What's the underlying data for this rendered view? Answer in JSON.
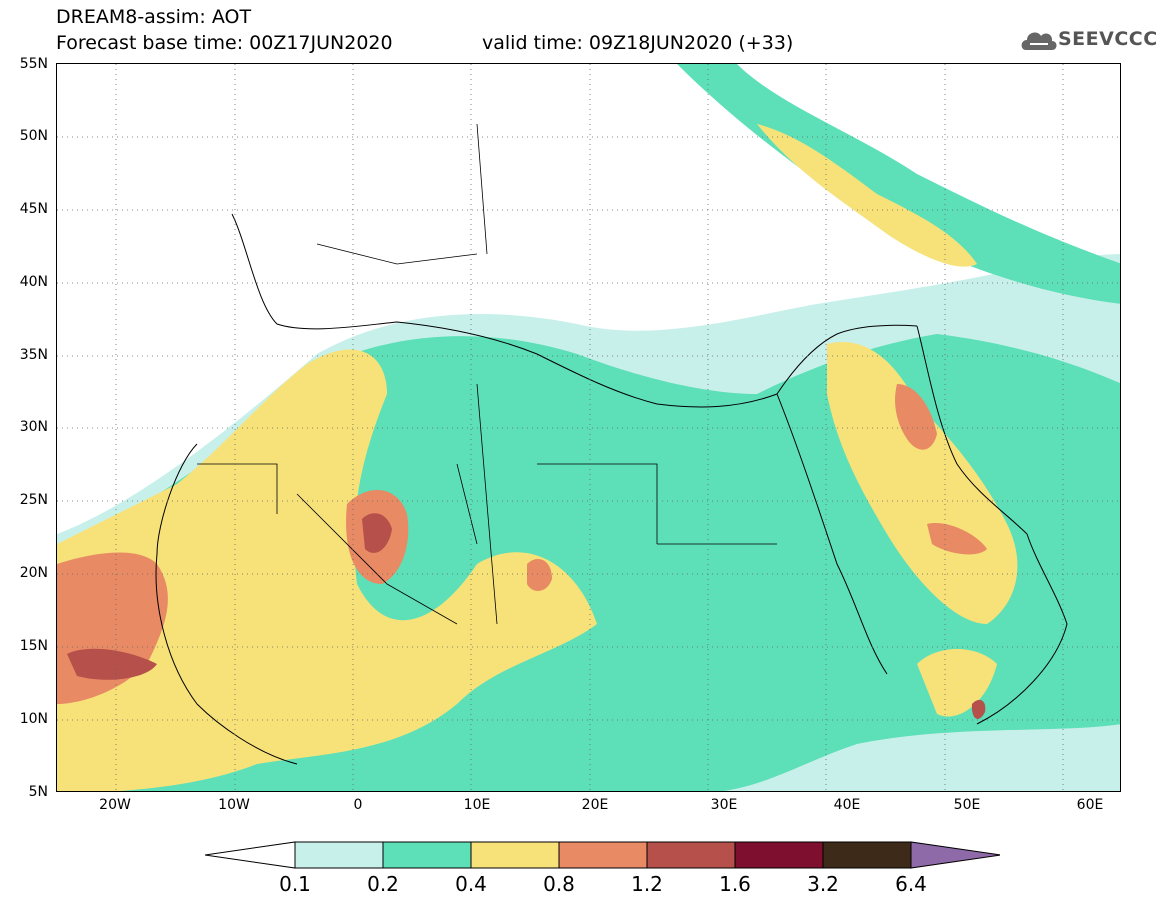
{
  "header": {
    "title_line1": "DREAM8-assim: AOT",
    "title_line2": "Forecast base time: 00Z17JUN2020",
    "valid_time": "valid time: 09Z18JUN2020 (+33)",
    "logo_text": "SEEVCCC"
  },
  "axes": {
    "lat_labels": [
      "55N",
      "50N",
      "45N",
      "40N",
      "35N",
      "30N",
      "25N",
      "20N",
      "15N",
      "10N",
      "5N"
    ],
    "lon_labels": [
      "20W",
      "10W",
      "0",
      "10E",
      "20E",
      "30E",
      "40E",
      "50E",
      "60E"
    ],
    "lat_range": [
      5,
      55
    ],
    "lon_range": [
      -25,
      65
    ],
    "grid": "dotted"
  },
  "colorbar": {
    "labels": [
      "0.1",
      "0.2",
      "0.4",
      "0.8",
      "1.2",
      "1.6",
      "3.2",
      "6.4"
    ],
    "colors": [
      "#ffffff",
      "#c8f0ea",
      "#5ddfb8",
      "#f7e27a",
      "#e88a64",
      "#b5504a",
      "#7e0f2e",
      "#3e2a18",
      "#8f6aa8"
    ]
  },
  "fields": {
    "lowest_color": "#c8f0ea",
    "low_color": "#5ddfb8",
    "mid_color": "#f7e27a",
    "high_color": "#e88a64",
    "very_high_color": "#b5504a"
  }
}
